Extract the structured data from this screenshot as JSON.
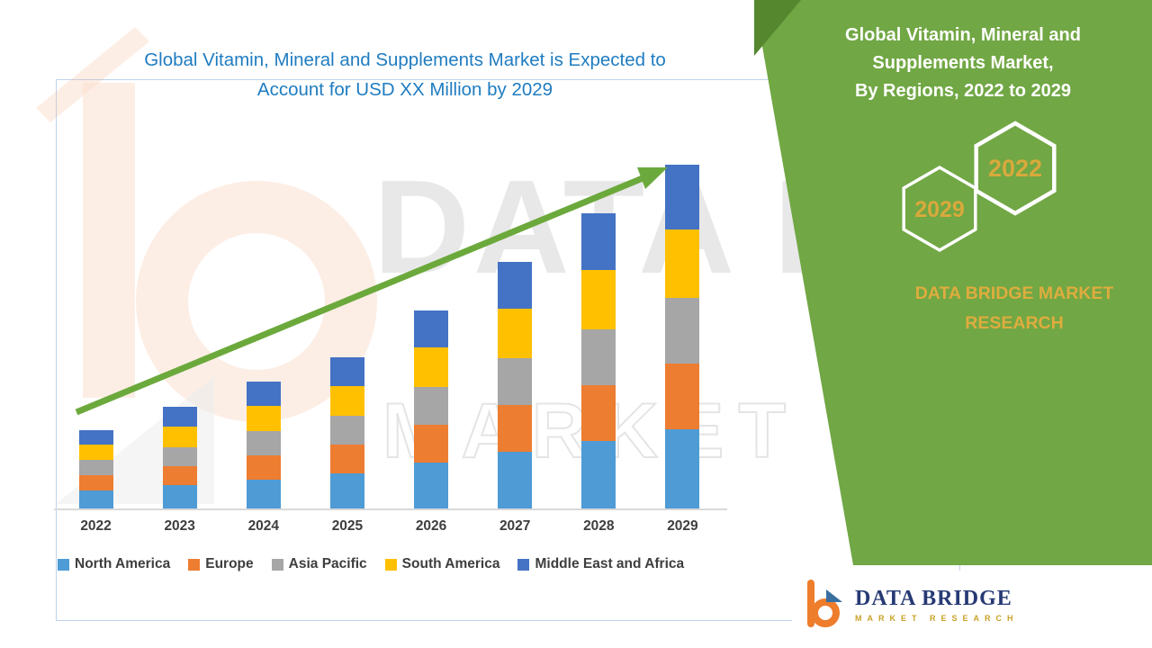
{
  "header": {
    "title_line1": "Global Vitamin, Mineral and Supplements Market is Expected to",
    "title_line2": "Account for USD XX Million by 2029",
    "title_color": "#1F7CC1"
  },
  "chart_data": {
    "type": "bar",
    "stacked": true,
    "title": "Global Vitamin, Mineral and Supplements Market is Expected to Account for USD XX Million by 2029",
    "categories": [
      "2022",
      "2023",
      "2024",
      "2025",
      "2026",
      "2027",
      "2028",
      "2029"
    ],
    "series": [
      {
        "name": "North America",
        "color": "#4E9BD5",
        "values": [
          20,
          26,
          32,
          39,
          51,
          63,
          75,
          88
        ]
      },
      {
        "name": "Europe",
        "color": "#ED7D31",
        "values": [
          17,
          21,
          27,
          32,
          42,
          52,
          62,
          73
        ]
      },
      {
        "name": "Asia Pacific",
        "color": "#A6A6A6",
        "values": [
          17,
          21,
          27,
          32,
          42,
          52,
          62,
          73
        ]
      },
      {
        "name": "South America",
        "color": "#FFC000",
        "values": [
          17,
          23,
          28,
          33,
          44,
          55,
          66,
          76
        ]
      },
      {
        "name": "Middle East and Africa",
        "color": "#4472C4",
        "values": [
          16,
          22,
          27,
          32,
          41,
          52,
          63,
          72
        ]
      }
    ],
    "xlabel": "",
    "ylabel": "",
    "ylim": [
      0,
      400
    ],
    "grid": false,
    "yaxis_labels_visible": false,
    "legend_position": "bottom",
    "trend_arrow": true,
    "trend_arrow_color": "#6CA93C"
  },
  "panel": {
    "title_lines": [
      "Global Vitamin, Mineral and",
      "Supplements Market,",
      "By Regions, 2022 to 2029"
    ],
    "hexagon_left_label": "2029",
    "hexagon_right_label": "2022",
    "brand_line1": "DATA BRIDGE MARKET",
    "brand_line2": "RESEARCH",
    "colors": {
      "bg": "#71A744",
      "accent": "#55872F",
      "gold": "#D9A93C",
      "white": "#FFFFFF"
    }
  },
  "footer_logo": {
    "name": "DATA BRIDGE",
    "tagline": "MARKET RESEARCH"
  },
  "watermark": {
    "text_line1": "DATA BRIDGE",
    "text_line2": "MARKET RESEARCH"
  }
}
